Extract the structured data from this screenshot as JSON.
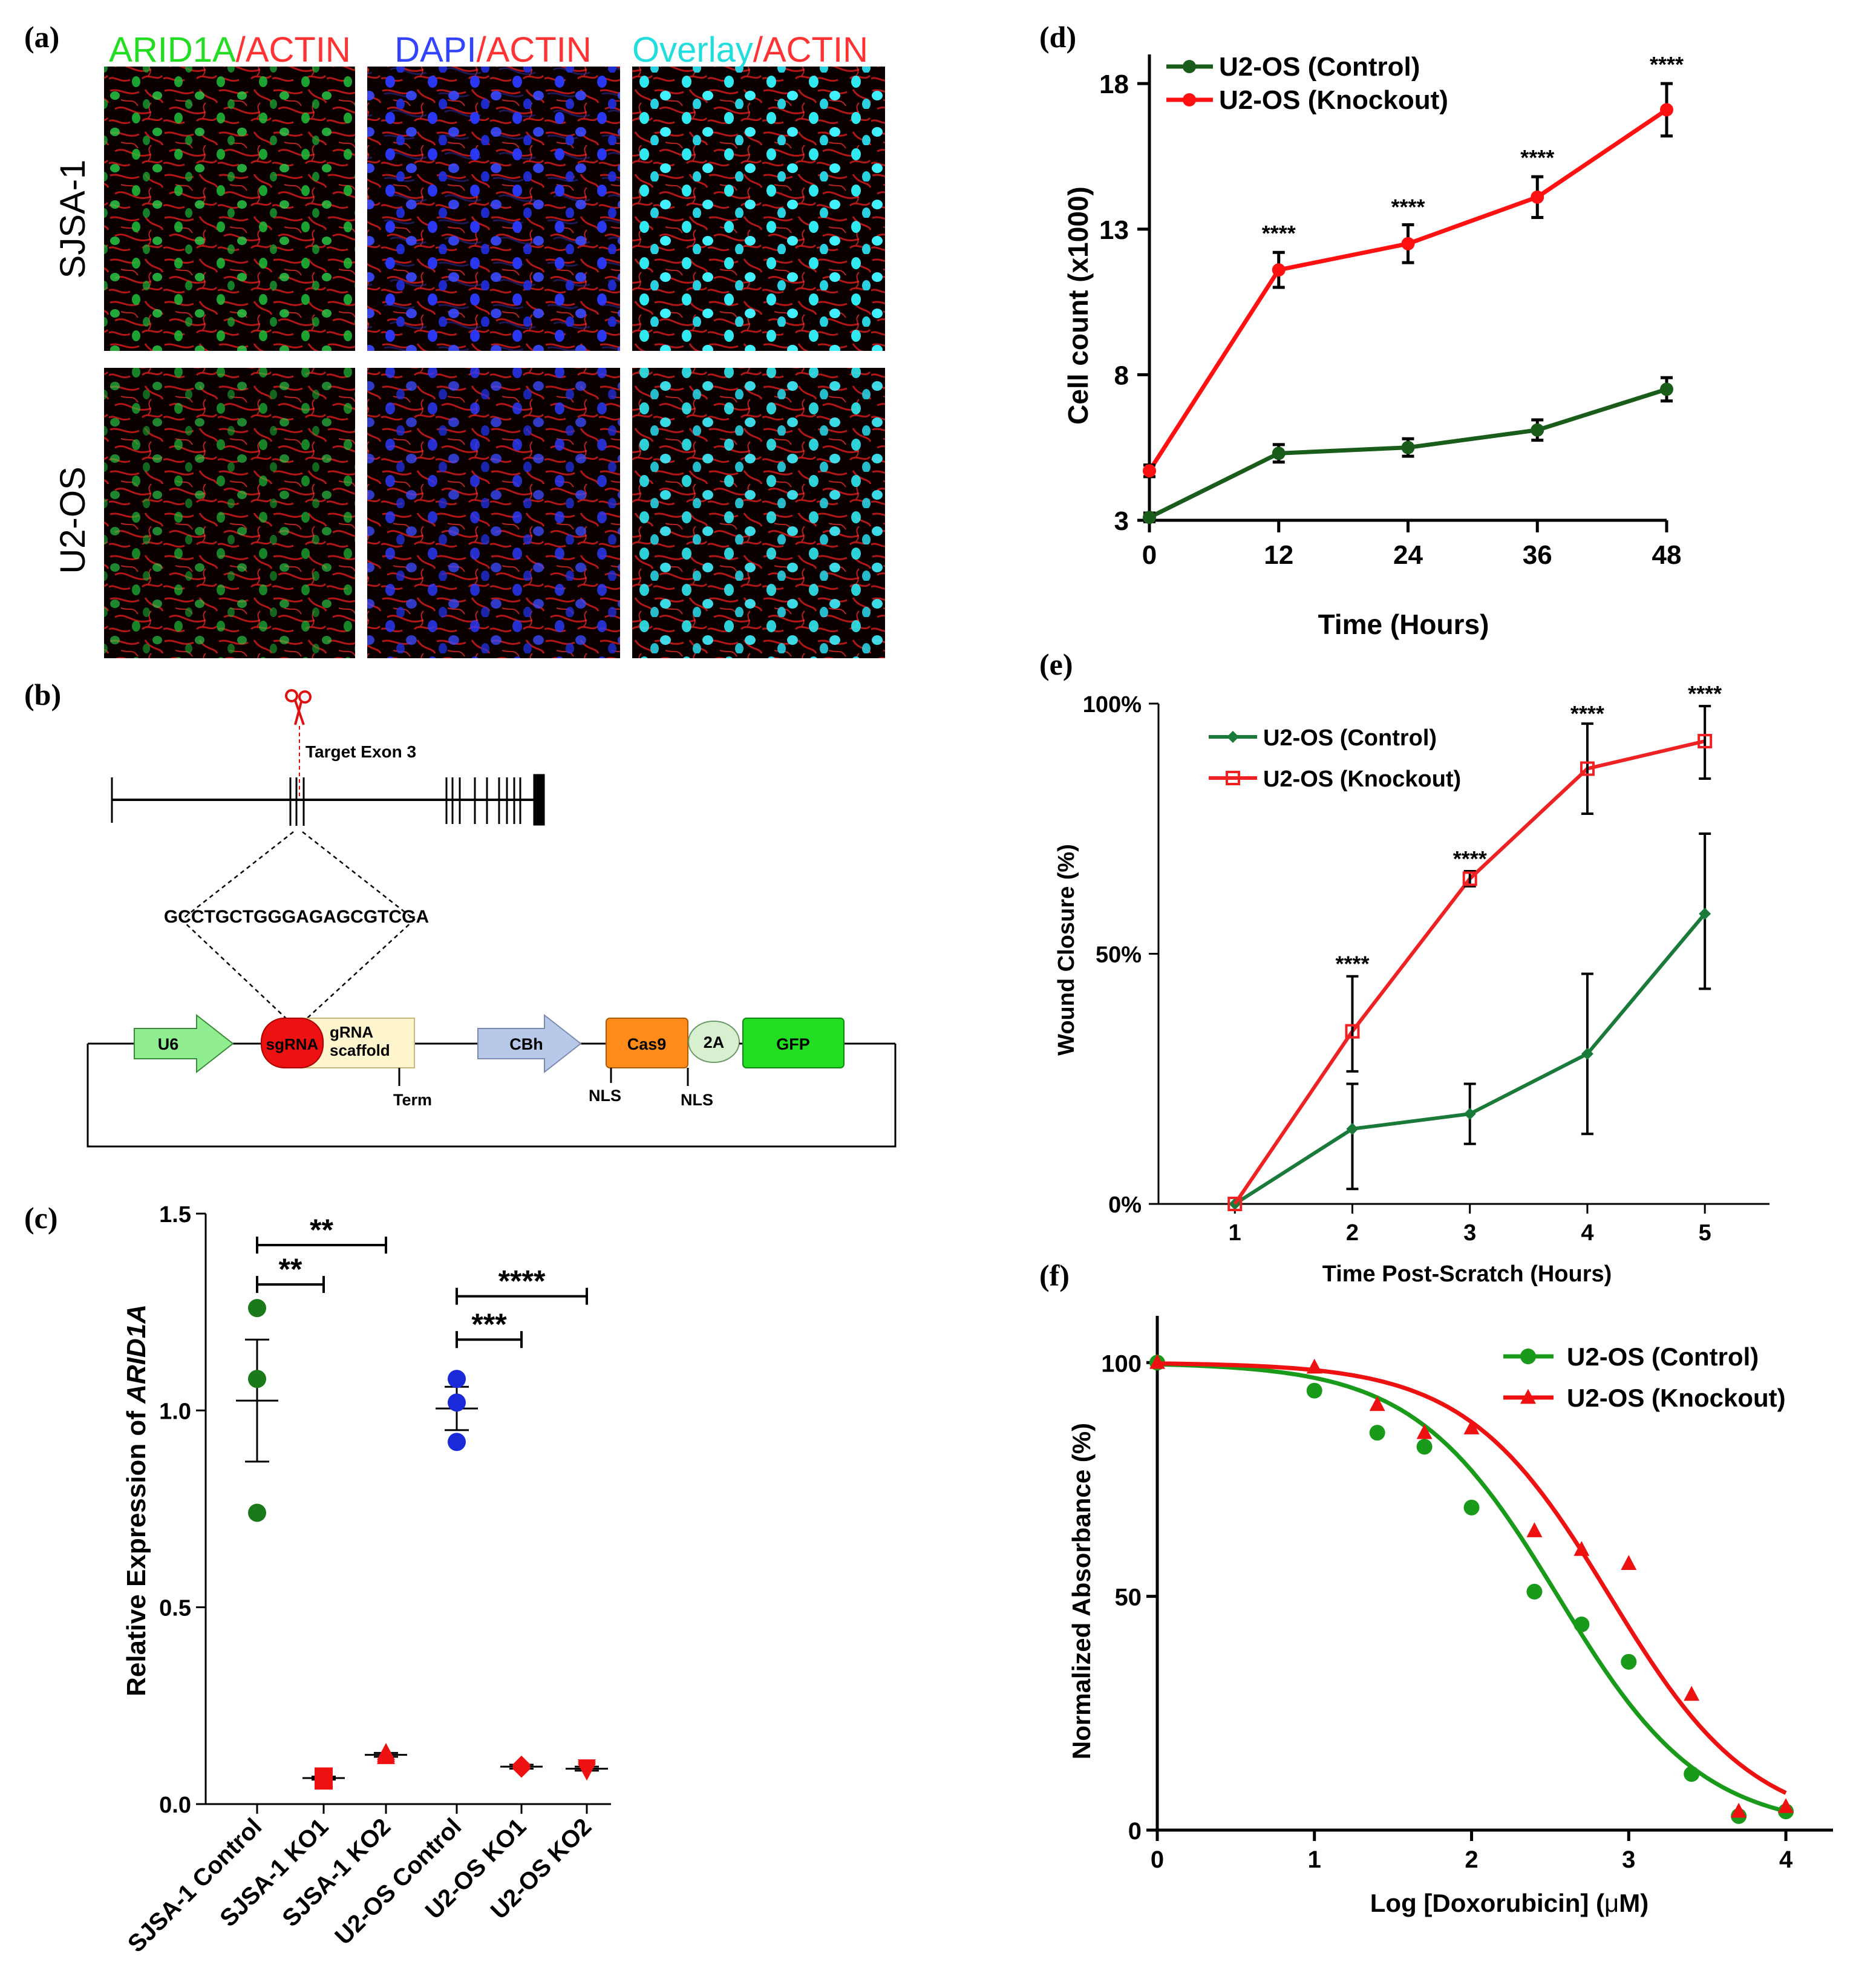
{
  "panel_labels": [
    "(a)",
    "(b)",
    "(c)",
    "(d)",
    "(e)",
    "(f)"
  ],
  "panel_a": {
    "headers": [
      {
        "parts": [
          "ARID1A",
          "/",
          "ACTIN"
        ],
        "colors": [
          "#22dd22",
          "#ff3333",
          "#ff3333"
        ]
      },
      {
        "parts": [
          "DAPI",
          "/",
          "ACTIN"
        ],
        "colors": [
          "#3344ff",
          "#ff3333",
          "#ff3333"
        ]
      },
      {
        "parts": [
          "Overlay",
          "/",
          "ACTIN"
        ],
        "colors": [
          "#22dddd",
          "#ff3333",
          "#ff3333"
        ]
      }
    ],
    "row_labels": [
      "SJSA-1",
      "U2-OS"
    ]
  },
  "panel_b": {
    "target_label": "Target Exon 3",
    "sequence": "GCCTGCTGGGAGAGCGTCGA",
    "elements": {
      "u6": "U6",
      "sgrna": "sgRNA",
      "scaffold_1": "gRNA",
      "scaffold_2": "scaffold",
      "term": "Term",
      "cbh": "CBh",
      "cas9": "Cas9",
      "t2a": "2A",
      "gfp": "GFP",
      "nls_1": "NLS",
      "nls_2": "NLS"
    },
    "colors": {
      "u6": "#90ee90",
      "sgrna": "#ee1111",
      "scaffold": "#fff5cc",
      "cbh": "#b8c8e8",
      "cas9": "#ff8c1a",
      "t2a": "#d8f0d0",
      "gfp": "#22dd22"
    }
  },
  "chart_data": [
    {
      "id": "c",
      "type": "scatter",
      "ylabel_prefix": "Relative Expression of ",
      "ylabel_italic": "ARID1A",
      "ylim": [
        0,
        1.5
      ],
      "yticks": [
        0.0,
        0.5,
        1.0,
        1.5
      ],
      "ytick_labels": [
        "0.0",
        "0.5",
        "1.0",
        "1.5"
      ],
      "categories": [
        "SJSA-1 Control",
        "SJSA-1 KO1",
        "SJSA-1 KO2",
        "U2-OS Control",
        "U2-OS KO1",
        "U2-OS KO2"
      ],
      "groups": [
        {
          "category": "SJSA-1 Control",
          "points": [
            1.26,
            1.08,
            0.74
          ],
          "mean": 1.025,
          "sem_low": 0.87,
          "sem_high": 1.18,
          "marker": "circle",
          "color": "#1a7a1a"
        },
        {
          "category": "SJSA-1 KO1",
          "points": [
            0.07,
            0.06,
            0.065
          ],
          "mean": 0.066,
          "sem_low": 0.062,
          "sem_high": 0.07,
          "marker": "square",
          "color": "#ee1111"
        },
        {
          "category": "SJSA-1 KO2",
          "points": [
            0.12,
            0.125,
            0.13
          ],
          "mean": 0.125,
          "sem_low": 0.12,
          "sem_high": 0.13,
          "marker": "triangle-up",
          "color": "#ee1111"
        },
        {
          "category": "U2-OS Control",
          "points": [
            1.08,
            1.02,
            0.92
          ],
          "mean": 1.005,
          "sem_low": 0.95,
          "sem_high": 1.06,
          "marker": "circle",
          "color": "#1a2ad8"
        },
        {
          "category": "U2-OS KO1",
          "points": [
            0.095,
            0.1,
            0.09
          ],
          "mean": 0.095,
          "sem_low": 0.09,
          "sem_high": 0.1,
          "marker": "diamond",
          "color": "#ee1111"
        },
        {
          "category": "U2-OS KO2",
          "points": [
            0.09,
            0.095,
            0.085
          ],
          "mean": 0.09,
          "sem_low": 0.085,
          "sem_high": 0.095,
          "marker": "triangle-down",
          "color": "#ee1111"
        }
      ],
      "significance": [
        {
          "from": 0,
          "to": 1,
          "y": 1.32,
          "label": "**"
        },
        {
          "from": 0,
          "to": 2,
          "y": 1.42,
          "label": "**"
        },
        {
          "from": 3,
          "to": 4,
          "y": 1.18,
          "label": "***"
        },
        {
          "from": 3,
          "to": 5,
          "y": 1.29,
          "label": "****"
        }
      ]
    },
    {
      "id": "d",
      "type": "line",
      "xlabel": "Time (Hours)",
      "ylabel": "Cell count (x1000)",
      "x": [
        0,
        12,
        24,
        36,
        48
      ],
      "xlim": [
        0,
        48
      ],
      "ylim": [
        3,
        19
      ],
      "yticks": [
        3,
        8,
        13,
        18
      ],
      "series": [
        {
          "name": "U2-OS (Control)",
          "color": "#1a5c1a",
          "marker": "circle",
          "values": [
            3.1,
            5.3,
            5.5,
            6.1,
            7.5
          ],
          "errors": [
            0.15,
            0.3,
            0.3,
            0.35,
            0.4
          ]
        },
        {
          "name": "U2-OS (Knockout)",
          "color": "#ff1111",
          "marker": "circle",
          "values": [
            4.7,
            11.6,
            12.5,
            14.1,
            17.1
          ],
          "errors": [
            0.2,
            0.6,
            0.65,
            0.7,
            0.9
          ]
        }
      ],
      "annotations": [
        {
          "x": 12,
          "y": 12.6,
          "label": "****"
        },
        {
          "x": 24,
          "y": 13.5,
          "label": "****"
        },
        {
          "x": 36,
          "y": 15.2,
          "label": "****"
        },
        {
          "x": 48,
          "y": 18.4,
          "label": "****"
        }
      ],
      "legend": "top-left"
    },
    {
      "id": "e",
      "type": "line",
      "xlabel": "Time Post-Scratch (Hours)",
      "ylabel": "Wound Closure (%)",
      "x": [
        1,
        2,
        3,
        4,
        5
      ],
      "xlim": [
        0.35,
        5.55
      ],
      "ylim": [
        0,
        100
      ],
      "yticks": [
        0,
        50,
        100
      ],
      "ytick_labels": [
        "0%",
        "50%",
        "100%"
      ],
      "series": [
        {
          "name": "U2-OS (Control)",
          "color": "#1a7a3a",
          "marker": "diamond",
          "values": [
            0,
            15,
            18,
            30,
            58
          ],
          "err_low": [
            0,
            12,
            6,
            16,
            15
          ],
          "err_high": [
            0,
            9,
            6,
            16,
            16
          ]
        },
        {
          "name": "U2-OS (Knockout)",
          "color": "#ee2222",
          "marker": "square-open",
          "values": [
            0,
            34.5,
            65,
            87,
            92.5
          ],
          "err_low": [
            0,
            8,
            1.5,
            9,
            7.5
          ],
          "err_high": [
            0,
            11,
            1.5,
            9,
            7
          ]
        }
      ],
      "annotations": [
        {
          "x": 2,
          "y": 46.5,
          "label": "****"
        },
        {
          "x": 3,
          "y": 67.5,
          "label": "****"
        },
        {
          "x": 4,
          "y": 96.5,
          "label": "****"
        },
        {
          "x": 5,
          "y": 100.5,
          "label": "****"
        }
      ],
      "legend": "top-left"
    },
    {
      "id": "f",
      "type": "scatter",
      "xlabel_pre": "Log [Doxorubicin] (",
      "xlabel_mu": "μ",
      "xlabel_post": "M)",
      "ylabel": "Normalized Absorbance (%)",
      "xlim": [
        0,
        4.3
      ],
      "ylim": [
        0,
        110
      ],
      "xticks": [
        0,
        1,
        2,
        3,
        4
      ],
      "yticks": [
        0,
        50,
        100
      ],
      "series": [
        {
          "name": "U2-OS (Control)",
          "color": "#1a9a1a",
          "marker": "circle",
          "x": [
            0,
            1,
            1.4,
            1.7,
            2,
            2.4,
            2.7,
            3,
            3.4,
            3.7,
            4
          ],
          "y": [
            100,
            94,
            85,
            82,
            69,
            51,
            44,
            36,
            12,
            3,
            4
          ],
          "fit": {
            "top": 100,
            "bottom": 0,
            "logEC50": 2.55,
            "hill": 0.95
          }
        },
        {
          "name": "U2-OS (Knockout)",
          "color": "#ee1111",
          "marker": "triangle-up",
          "x": [
            0,
            1,
            1.4,
            1.7,
            2,
            2.4,
            2.7,
            3,
            3.4,
            3.7,
            4
          ],
          "y": [
            100,
            99,
            91,
            85,
            86,
            64,
            60,
            57,
            29,
            4,
            5
          ],
          "fit": {
            "top": 100,
            "bottom": 0,
            "logEC50": 2.88,
            "hill": 0.95
          }
        }
      ],
      "legend": "top-right"
    }
  ]
}
